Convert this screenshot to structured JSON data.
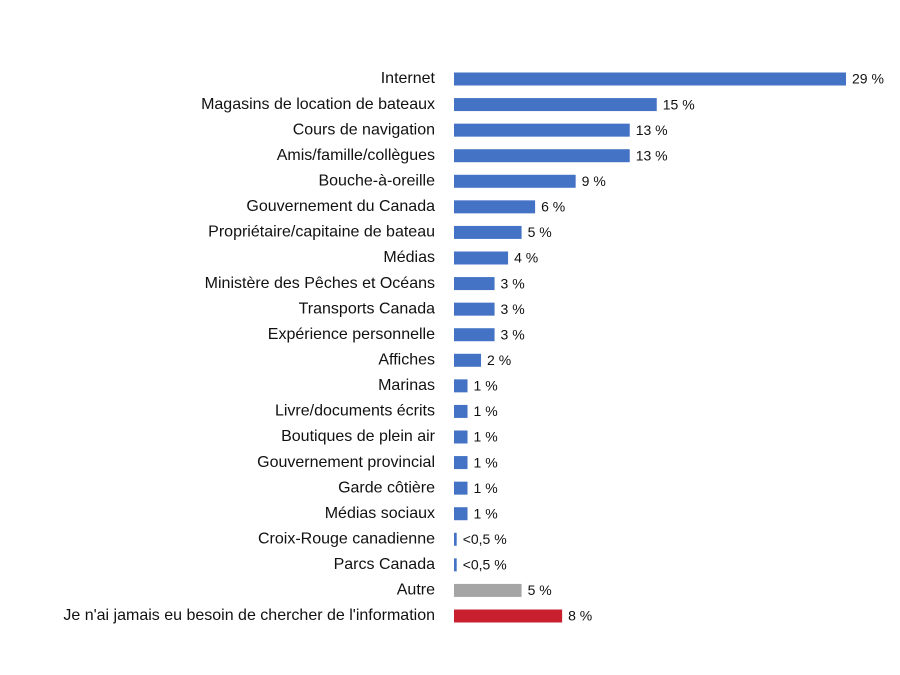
{
  "chart_data": {
    "type": "bar",
    "orientation": "horizontal",
    "categories": [
      "Internet",
      "Magasins de location de bateaux",
      "Cours de navigation",
      "Amis/famille/collègues",
      "Bouche-à-oreille",
      "Gouvernement du Canada",
      "Propriétaire/capitaine de bateau",
      "Médias",
      "Ministère des Pêches et Océans",
      "Transports Canada",
      "Expérience personnelle",
      "Affiches",
      "Marinas",
      "Livre/documents écrits",
      "Boutiques de plein air",
      "Gouvernement provincial",
      "Garde côtière",
      "Médias sociaux",
      "Croix-Rouge canadienne",
      "Parcs Canada",
      "Autre",
      "Je n'ai jamais eu besoin de chercher de l'information"
    ],
    "values": [
      29,
      15,
      13,
      13,
      9,
      6,
      5,
      4,
      3,
      3,
      3,
      2,
      1,
      1,
      1,
      1,
      1,
      1,
      0.2,
      0.2,
      5,
      8
    ],
    "value_labels": [
      "29 %",
      "15 %",
      "13 %",
      "13 %",
      "9 %",
      "6 %",
      "5 %",
      "4 %",
      "3 %",
      "3 %",
      "3 %",
      "2 %",
      "1 %",
      "1 %",
      "1 %",
      "1 %",
      "1 %",
      "1 %",
      "<0,5 %",
      "<0,5 %",
      "5 %",
      "8 %"
    ],
    "colors": [
      "#4472c4",
      "#4472c4",
      "#4472c4",
      "#4472c4",
      "#4472c4",
      "#4472c4",
      "#4472c4",
      "#4472c4",
      "#4472c4",
      "#4472c4",
      "#4472c4",
      "#4472c4",
      "#4472c4",
      "#4472c4",
      "#4472c4",
      "#4472c4",
      "#4472c4",
      "#4472c4",
      "#4472c4",
      "#4472c4",
      "#a5a5a5",
      "#c8202f"
    ]
  }
}
